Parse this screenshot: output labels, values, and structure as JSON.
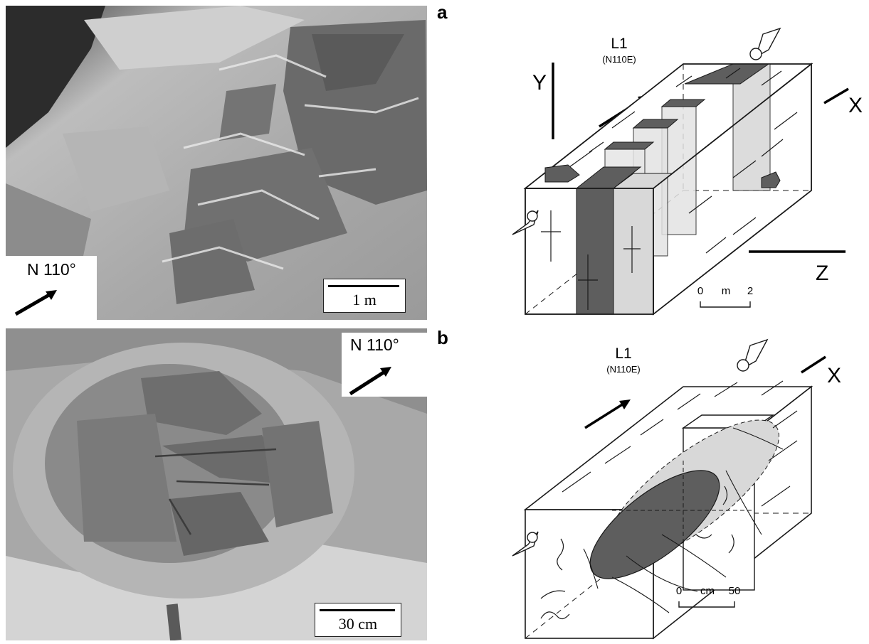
{
  "panels": {
    "a": {
      "letter": "a",
      "photo": {
        "north_label": "N 110°",
        "scale_label": "1 m"
      },
      "diagram": {
        "lineation_label": "L1",
        "lineation_direction": "(N110E)",
        "axis_y": "Y",
        "axis_x": "X",
        "axis_z": "Z",
        "scale": {
          "start": "0",
          "unit": "m",
          "end": "2"
        }
      }
    },
    "b": {
      "letter": "b",
      "photo": {
        "north_label": "N 110°",
        "scale_label": "30 cm"
      },
      "diagram": {
        "lineation_label": "L1",
        "lineation_direction": "(N110E)",
        "axis_x": "X",
        "scale": {
          "start": "0",
          "unit": "cm",
          "end": "50"
        }
      }
    }
  },
  "colors": {
    "dark_fill": "#5e5e5e",
    "light_fill": "#d6d6d6",
    "line": "#1a1a1a"
  }
}
